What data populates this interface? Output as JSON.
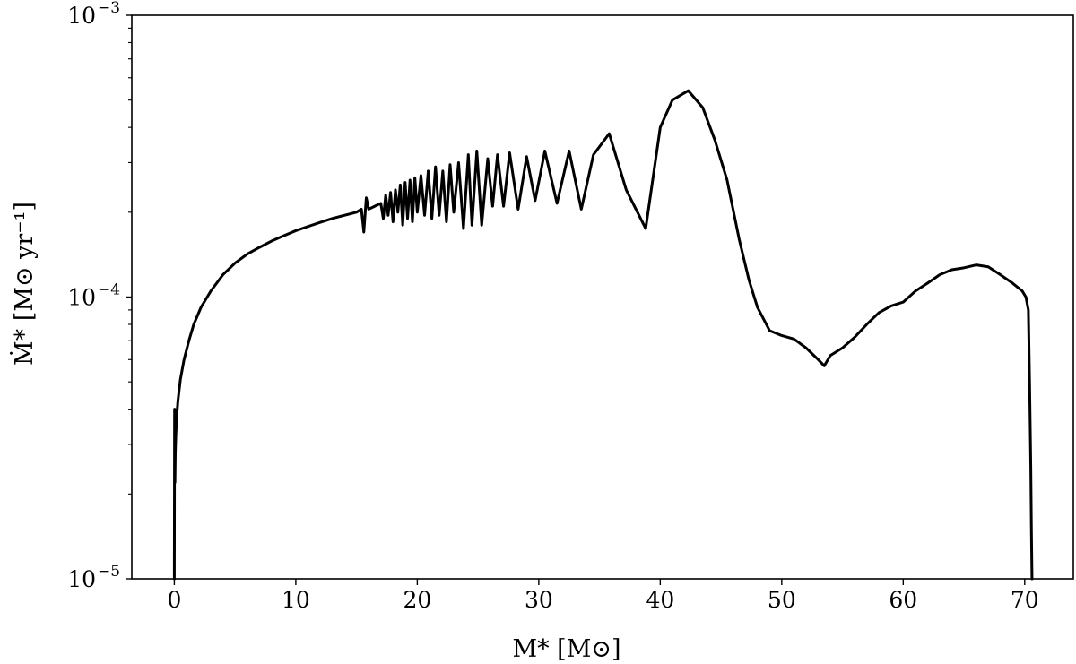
{
  "chart_data": {
    "type": "line",
    "title": "",
    "xlabel": "M* [M⊙]",
    "ylabel": "Ṁ* [M⊙ yr⁻¹]",
    "x_scale": "linear",
    "y_scale": "log",
    "xlim": [
      -3.5,
      74
    ],
    "ylim": [
      1e-05,
      0.001
    ],
    "x_ticks": [
      0,
      10,
      20,
      30,
      40,
      50,
      60,
      70
    ],
    "x_tick_labels": [
      "0",
      "10",
      "20",
      "30",
      "40",
      "50",
      "60",
      "70"
    ],
    "y_ticks": [
      {
        "value": 0.001,
        "base": "10",
        "exp": "−3"
      },
      {
        "value": 0.0001,
        "base": "10",
        "exp": "−4"
      },
      {
        "value": 1e-05,
        "base": "10",
        "exp": "−5"
      }
    ],
    "grid": false,
    "legend": "none",
    "line_color": "#000000",
    "series": [
      {
        "x": [
          0.0,
          0.02,
          0.05,
          0.08,
          0.12,
          0.2,
          0.3,
          0.5,
          0.8,
          1.2,
          1.6,
          2.2,
          3.0,
          4.0,
          5.0,
          6.0,
          7.0,
          8.0,
          9.0,
          10.0,
          11.0,
          12.0,
          13.0,
          14.0,
          15.0,
          15.4,
          15.6,
          15.8,
          16.0,
          16.5,
          17.0,
          17.2,
          17.4,
          17.6,
          17.8,
          18.0,
          18.2,
          18.4,
          18.6,
          18.8,
          19.0,
          19.2,
          19.4,
          19.6,
          19.8,
          20.0,
          20.3,
          20.6,
          20.9,
          21.2,
          21.5,
          21.8,
          22.1,
          22.4,
          22.7,
          23.0,
          23.4,
          23.8,
          24.2,
          24.5,
          24.9,
          25.3,
          25.8,
          26.2,
          26.6,
          27.1,
          27.6,
          28.3,
          29.0,
          29.7,
          30.5,
          31.5,
          32.5,
          33.5,
          34.5,
          35.8,
          37.2,
          38.8,
          40.0,
          41.0,
          42.3,
          43.5,
          44.5,
          45.5,
          46.5,
          47.3,
          48.0,
          49.0,
          50.0,
          51.0,
          52.0,
          53.0,
          53.5,
          54.0,
          55.0,
          56.0,
          57.0,
          58.0,
          59.0,
          60.0,
          61.0,
          62.0,
          63.0,
          64.0,
          65.0,
          66.0,
          67.0,
          68.0,
          69.0,
          69.8,
          70.1,
          70.3,
          70.4,
          70.5,
          70.55,
          70.6
        ],
        "y": [
          1e-05,
          4e-05,
          2.2e-05,
          2.8e-05,
          3.2e-05,
          3.8e-05,
          4.3e-05,
          5.1e-05,
          6e-05,
          7e-05,
          8e-05,
          9.2e-05,
          0.000105,
          0.00012,
          0.000132,
          0.000142,
          0.00015,
          0.000158,
          0.000165,
          0.000172,
          0.000178,
          0.000184,
          0.00019,
          0.000195,
          0.0002,
          0.000205,
          0.00017,
          0.000225,
          0.000205,
          0.00021,
          0.000215,
          0.00019,
          0.00023,
          0.000195,
          0.000235,
          0.000185,
          0.00024,
          0.0002,
          0.00025,
          0.00018,
          0.000255,
          0.00019,
          0.00026,
          0.000185,
          0.000265,
          0.0002,
          0.00027,
          0.000195,
          0.00028,
          0.00019,
          0.00029,
          0.000195,
          0.00028,
          0.000185,
          0.000295,
          0.0002,
          0.0003,
          0.000175,
          0.00032,
          0.00018,
          0.00033,
          0.00018,
          0.00031,
          0.00021,
          0.00032,
          0.00021,
          0.000325,
          0.000205,
          0.000315,
          0.00022,
          0.00033,
          0.000215,
          0.00033,
          0.000205,
          0.00032,
          0.00038,
          0.00024,
          0.000175,
          0.0004,
          0.0005,
          0.00054,
          0.00047,
          0.00036,
          0.00026,
          0.00016,
          0.000115,
          9.2e-05,
          7.6e-05,
          7.3e-05,
          7.1e-05,
          6.6e-05,
          6e-05,
          5.7e-05,
          6.2e-05,
          6.6e-05,
          7.2e-05,
          8e-05,
          8.8e-05,
          9.3e-05,
          9.6e-05,
          0.000105,
          0.000112,
          0.00012,
          0.000125,
          0.000127,
          0.00013,
          0.000128,
          0.00012,
          0.000112,
          0.000105,
          0.0001,
          9e-05,
          5e-05,
          2.5e-05,
          1.5e-05,
          1e-05
        ]
      }
    ]
  }
}
